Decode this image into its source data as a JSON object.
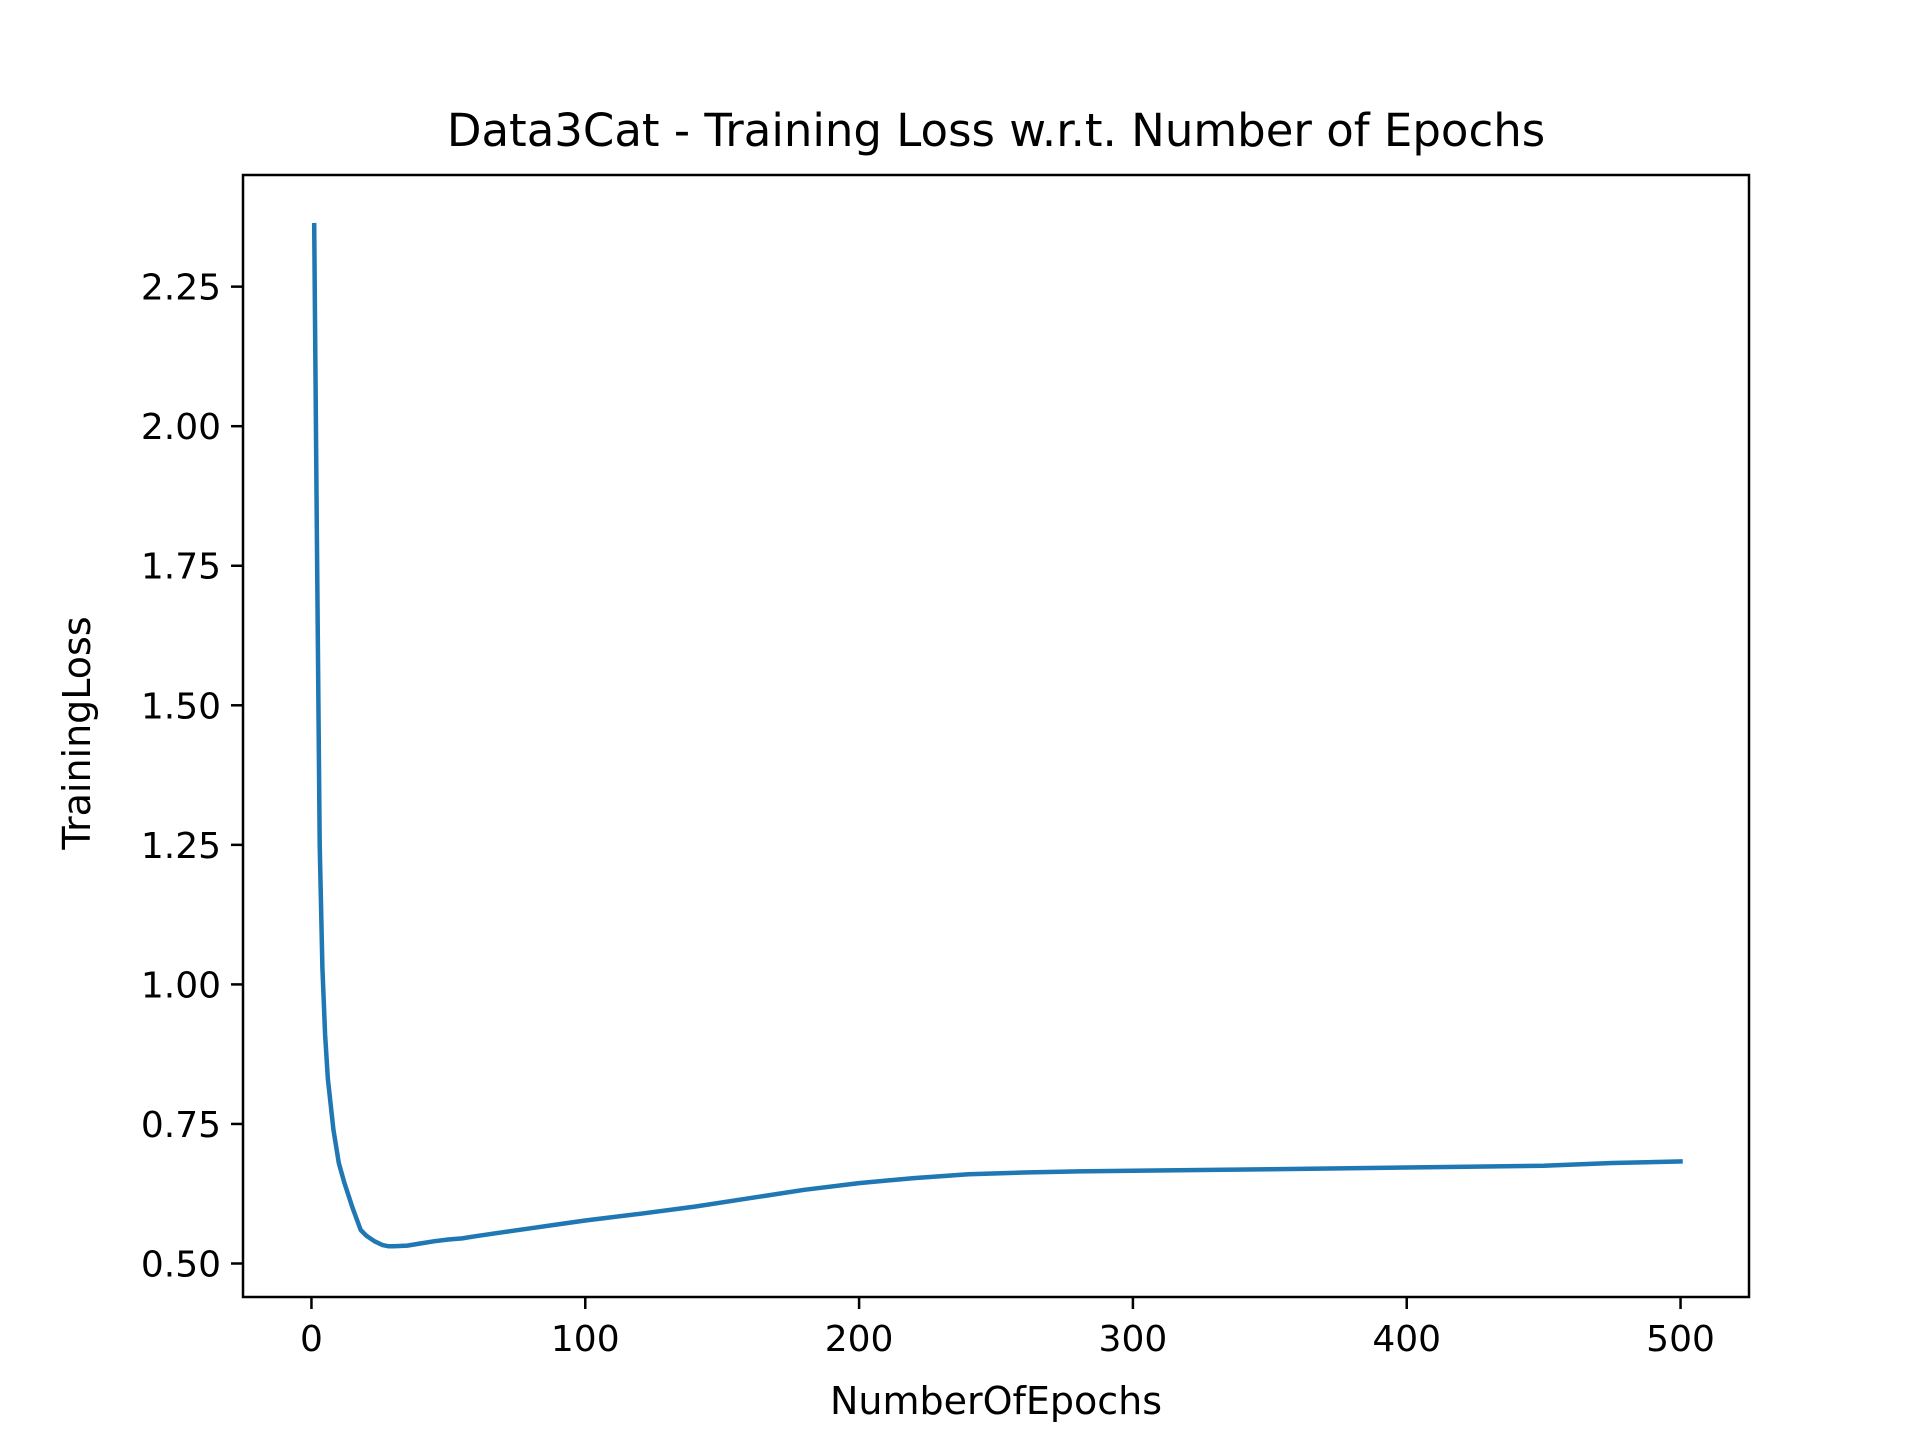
{
  "chart_data": {
    "type": "line",
    "title": "Data3Cat - Training Loss w.r.t. Number of Epochs",
    "xlabel": "NumberOfEpochs",
    "ylabel": "TrainingLoss",
    "xlim": [
      -25,
      525
    ],
    "ylim": [
      0.44,
      2.45
    ],
    "xticks": [
      0,
      100,
      200,
      300,
      400,
      500
    ],
    "xtick_labels": [
      "0",
      "100",
      "200",
      "300",
      "400",
      "500"
    ],
    "yticks": [
      0.5,
      0.75,
      1.0,
      1.25,
      1.5,
      1.75,
      2.0,
      2.25
    ],
    "ytick_labels": [
      "0.50",
      "0.75",
      "1.00",
      "1.25",
      "1.50",
      "1.75",
      "2.00",
      "2.25"
    ],
    "grid": false,
    "legend": "none",
    "series": [
      {
        "color": "#1f77b4",
        "x": [
          1,
          2,
          3,
          4,
          5,
          6,
          8,
          10,
          12,
          15,
          18,
          20,
          23,
          26,
          28,
          30,
          35,
          40,
          45,
          50,
          55,
          60,
          70,
          80,
          90,
          100,
          120,
          140,
          160,
          180,
          200,
          220,
          240,
          260,
          280,
          300,
          350,
          400,
          450,
          475,
          500
        ],
        "y": [
          2.36,
          1.8,
          1.25,
          1.03,
          0.91,
          0.83,
          0.74,
          0.68,
          0.645,
          0.6,
          0.56,
          0.55,
          0.54,
          0.533,
          0.531,
          0.531,
          0.532,
          0.536,
          0.54,
          0.543,
          0.545,
          0.549,
          0.556,
          0.563,
          0.57,
          0.577,
          0.589,
          0.602,
          0.617,
          0.632,
          0.644,
          0.653,
          0.66,
          0.663,
          0.665,
          0.666,
          0.669,
          0.672,
          0.675,
          0.68,
          0.683
        ]
      }
    ]
  }
}
